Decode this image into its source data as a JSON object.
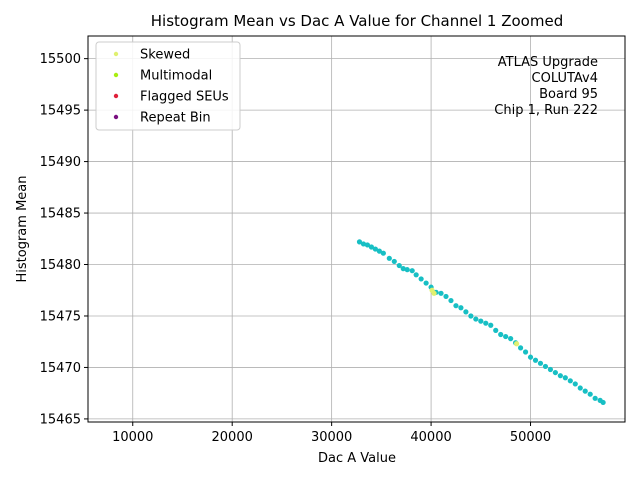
{
  "chart_data": {
    "type": "scatter",
    "title": "Histogram Mean vs Dac A Value for Channel 1 Zoomed",
    "xlabel": "Dac A Value",
    "ylabel": "Histogram Mean",
    "xlim": [
      5500,
      59500
    ],
    "ylim": [
      15464.7,
      15502.2
    ],
    "xticks": [
      10000,
      20000,
      30000,
      40000,
      50000
    ],
    "yticks": [
      15465,
      15470,
      15475,
      15480,
      15485,
      15490,
      15495,
      15500
    ],
    "grid": true,
    "legend_position": "top-left",
    "legend": [
      {
        "label": "Skewed",
        "color": "#e0f070"
      },
      {
        "label": "Multimodal",
        "color": "#a8ee10"
      },
      {
        "label": "Flagged SEUs",
        "color": "#e0203a"
      },
      {
        "label": "Repeat Bin",
        "color": "#7a1080"
      }
    ],
    "annotation": [
      "ATLAS Upgrade",
      "COLUTAv4",
      "Board 95",
      "Chip 1, Run 222"
    ],
    "series": [
      {
        "color": "#17bfc4",
        "points": [
          [
            32800,
            15482.2
          ],
          [
            33200,
            15482.0
          ],
          [
            33600,
            15481.9
          ],
          [
            34000,
            15481.7
          ],
          [
            34400,
            15481.5
          ],
          [
            34800,
            15481.3
          ],
          [
            35200,
            15481.1
          ],
          [
            35800,
            15480.6
          ],
          [
            36300,
            15480.3
          ],
          [
            36800,
            15479.9
          ],
          [
            37200,
            15479.6
          ],
          [
            37600,
            15479.5
          ],
          [
            38100,
            15479.4
          ],
          [
            38500,
            15479.0
          ],
          [
            39000,
            15478.6
          ],
          [
            39500,
            15478.2
          ],
          [
            40000,
            15477.8
          ],
          [
            40500,
            15477.3
          ],
          [
            41000,
            15477.2
          ],
          [
            41500,
            15476.9
          ],
          [
            42000,
            15476.5
          ],
          [
            42500,
            15476.0
          ],
          [
            43000,
            15475.8
          ],
          [
            43500,
            15475.4
          ],
          [
            44000,
            15475.0
          ],
          [
            44500,
            15474.7
          ],
          [
            45000,
            15474.5
          ],
          [
            45500,
            15474.3
          ],
          [
            46000,
            15474.1
          ],
          [
            46500,
            15473.6
          ],
          [
            47000,
            15473.2
          ],
          [
            47500,
            15473.0
          ],
          [
            48000,
            15472.8
          ],
          [
            48500,
            15472.4
          ],
          [
            49000,
            15471.9
          ],
          [
            49500,
            15471.5
          ],
          [
            50000,
            15471.0
          ],
          [
            50500,
            15470.7
          ],
          [
            51000,
            15470.4
          ],
          [
            51500,
            15470.1
          ],
          [
            52000,
            15469.8
          ],
          [
            52500,
            15469.5
          ],
          [
            53000,
            15469.2
          ],
          [
            53500,
            15469.0
          ],
          [
            54000,
            15468.7
          ],
          [
            54500,
            15468.4
          ],
          [
            55000,
            15468.0
          ],
          [
            55500,
            15467.7
          ],
          [
            56000,
            15467.4
          ],
          [
            56500,
            15467.0
          ],
          [
            57000,
            15466.8
          ],
          [
            57300,
            15466.6
          ]
        ]
      },
      {
        "color": "#e0f070",
        "points": [
          [
            40100,
            15477.5
          ],
          [
            40300,
            15477.2
          ],
          [
            48600,
            15472.3
          ]
        ]
      }
    ]
  }
}
